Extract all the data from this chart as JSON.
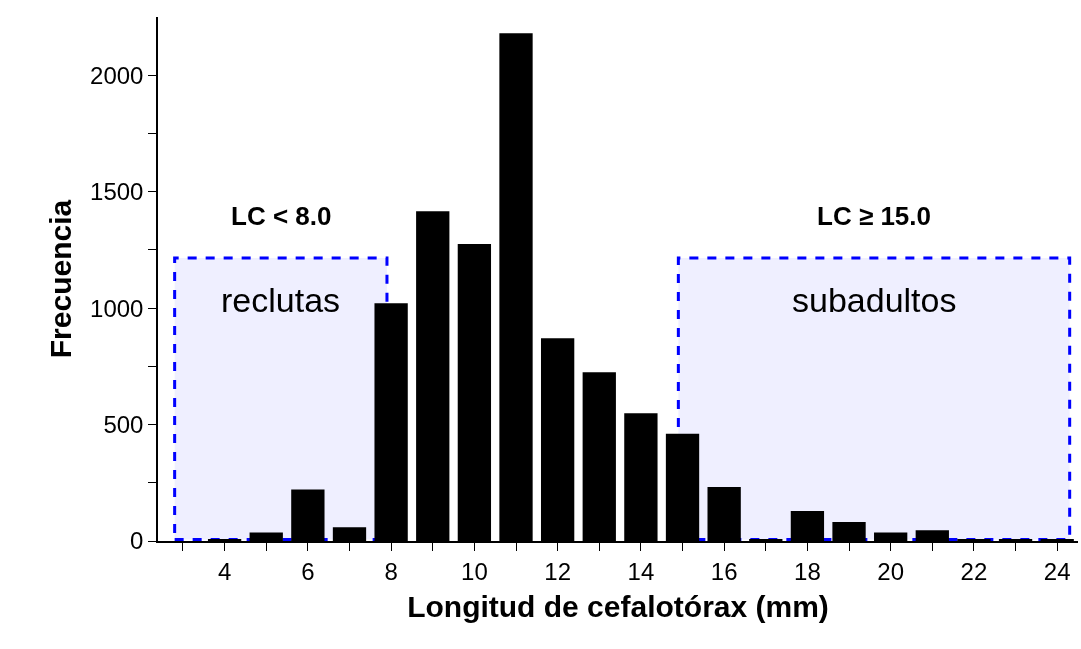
{
  "chart_data": {
    "type": "bar",
    "xlabel": "Longitud de cefalotórax (mm)",
    "ylabel": "Frecuencia",
    "x": [
      4,
      5,
      6,
      7,
      8,
      9,
      10,
      11,
      12,
      13,
      14,
      15,
      16,
      17,
      18,
      19,
      20,
      21,
      22,
      23,
      24
    ],
    "values": [
      5,
      36,
      221,
      59,
      1021,
      1416,
      1275,
      2180,
      871,
      725,
      549,
      461,
      232,
      5,
      129,
      82,
      36,
      46,
      5,
      5,
      5
    ],
    "color": "#000000",
    "xlim": [
      2.4,
      24.5
    ],
    "xticks": [
      {
        "value": 3,
        "label": null
      },
      4,
      {
        "value": 5,
        "label": null
      },
      6,
      {
        "value": 7,
        "label": null
      },
      8,
      {
        "value": 9,
        "label": null
      },
      10,
      {
        "value": 11,
        "label": null
      },
      12,
      {
        "value": 13,
        "label": null
      },
      14,
      {
        "value": 15,
        "label": null
      },
      16,
      {
        "value": 17,
        "label": null
      },
      18,
      {
        "value": 19,
        "label": null
      },
      20,
      {
        "value": 21,
        "label": null
      },
      22,
      {
        "value": 23,
        "label": null
      },
      24
    ],
    "ylim": [
      0,
      2250
    ],
    "yticks": [
      0,
      {
        "value": 250,
        "label": null
      },
      500,
      {
        "value": 750,
        "label": null
      },
      1000,
      {
        "value": 1250,
        "label": null
      },
      1500,
      {
        "value": 1750,
        "label": null
      },
      2000
    ],
    "bands": [
      {
        "axis": "x",
        "from": 2.8,
        "to": 7.9,
        "label": "reclutas",
        "color": "#0000ff"
      },
      {
        "axis": "x",
        "from": 14.9,
        "to": 24.3,
        "label": "subadultos",
        "color": "#0000ff"
      }
    ],
    "annotations": [
      "LC < 8.0",
      "LC ≥ 15.0"
    ],
    "relative": false
  }
}
